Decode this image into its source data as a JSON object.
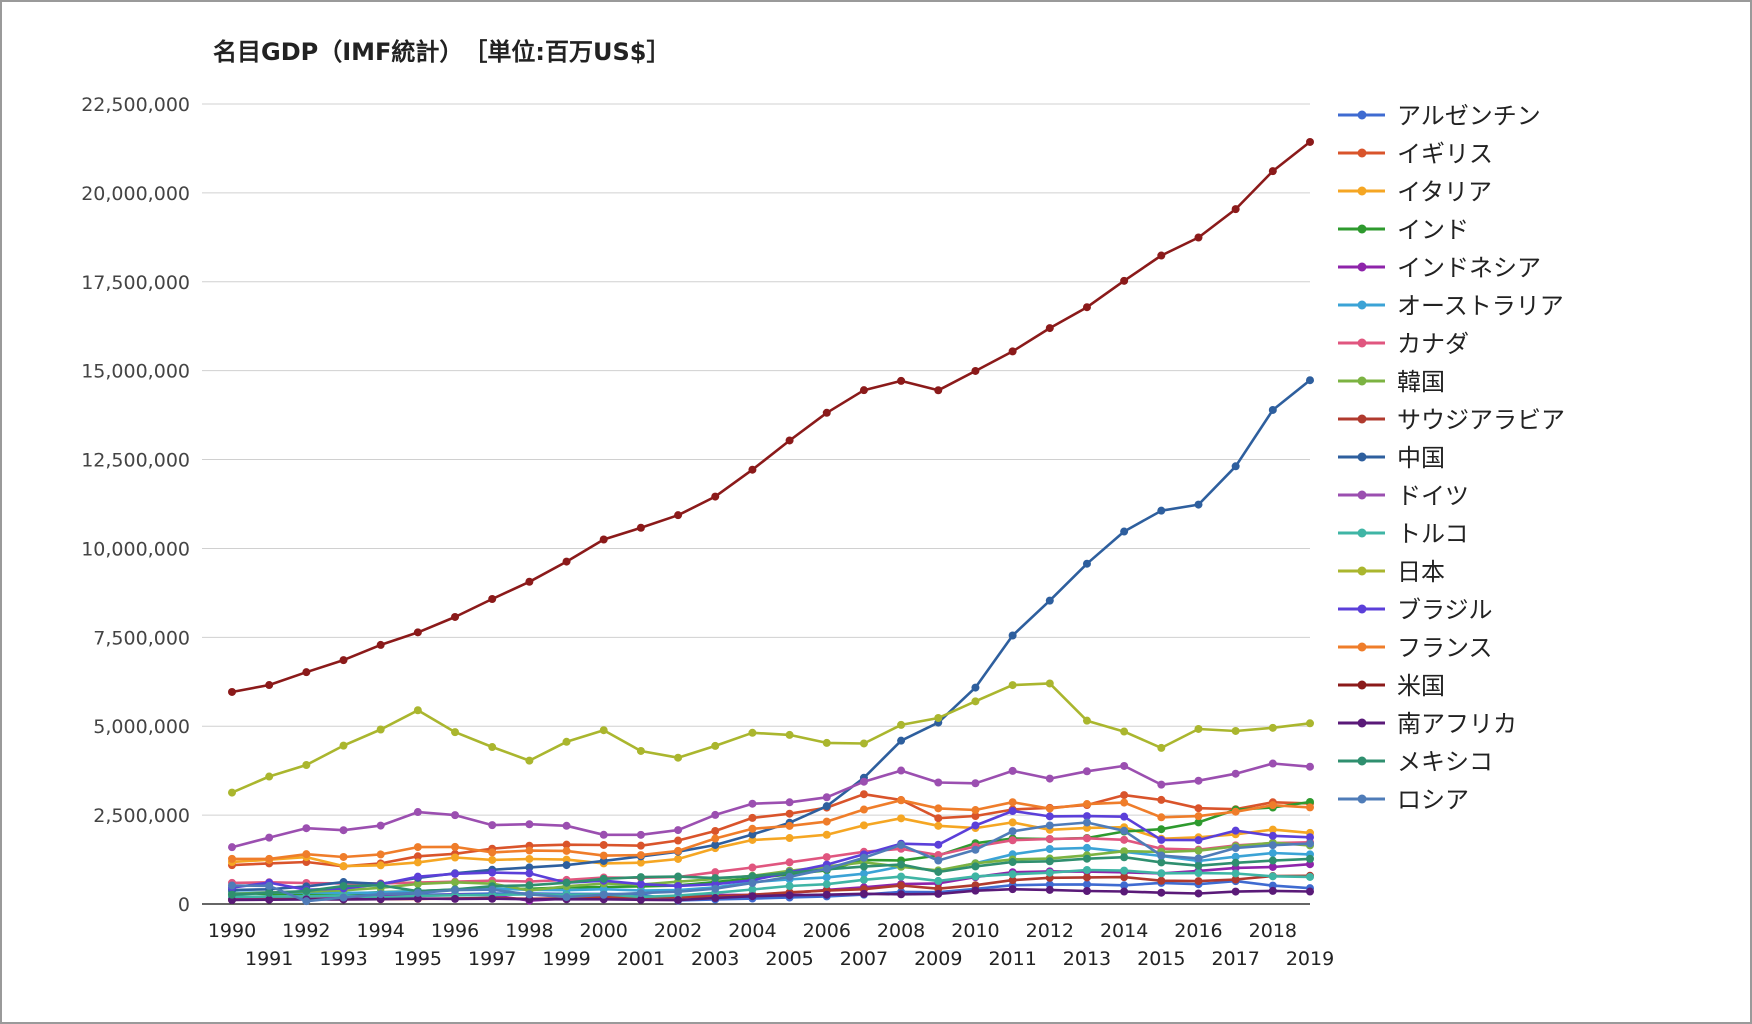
{
  "chart_data": {
    "type": "line",
    "title": "名目GDP（IMF統計）　［単位:百万US$］",
    "ylim": [
      0,
      22500000
    ],
    "yticks": [
      "0",
      "2,500,000",
      "5,000,000",
      "7,500,000",
      "10,000,000",
      "12,500,000",
      "15,000,000",
      "17,500,000",
      "20,000,000",
      "22,500,000"
    ],
    "grid": true,
    "legend_position": "right",
    "x": [
      1990,
      1991,
      1992,
      1993,
      1994,
      1995,
      1996,
      1997,
      1998,
      1999,
      2000,
      2001,
      2002,
      2003,
      2004,
      2005,
      2006,
      2007,
      2008,
      2009,
      2010,
      2011,
      2012,
      2013,
      2014,
      2015,
      2016,
      2017,
      2018,
      2019
    ],
    "series": [
      {
        "name": "アルゼンチン",
        "color": "#3f6bd1",
        "values": [
          141000,
          190000,
          229000,
          237000,
          258000,
          258000,
          272000,
          293000,
          299000,
          284000,
          284000,
          269000,
          98000,
          128000,
          153000,
          183000,
          214000,
          263000,
          339000,
          333000,
          424000,
          530000,
          546000,
          552000,
          526000,
          594000,
          557000,
          643000,
          518000,
          445000
        ]
      },
      {
        "name": "イギリス",
        "color": "#d9542b",
        "values": [
          1093000,
          1142000,
          1180000,
          1061000,
          1141000,
          1342000,
          1412000,
          1555000,
          1640000,
          1669000,
          1660000,
          1641000,
          1785000,
          2053000,
          2422000,
          2540000,
          2711000,
          3088000,
          2924000,
          2413000,
          2475000,
          2659000,
          2705000,
          2784000,
          3063000,
          2928000,
          2694000,
          2666000,
          2861000,
          2829000
        ]
      },
      {
        "name": "イタリア",
        "color": "#f5a623",
        "values": [
          1181000,
          1246000,
          1320000,
          1065000,
          1089000,
          1170000,
          1308000,
          1239000,
          1267000,
          1249000,
          1142000,
          1162000,
          1267000,
          1570000,
          1801000,
          1855000,
          1948000,
          2212000,
          2409000,
          2199000,
          2136000,
          2294000,
          2087000,
          2141000,
          2159000,
          1835000,
          1876000,
          1961000,
          2092000,
          2001000
        ]
      },
      {
        "name": "インド",
        "color": "#2e9a2e",
        "values": [
          326000,
          275000,
          293000,
          284000,
          333000,
          367000,
          400000,
          423000,
          428000,
          467000,
          477000,
          494000,
          524000,
          618000,
          722000,
          834000,
          949000,
          1238000,
          1224000,
          1365000,
          1709000,
          1843000,
          1826000,
          1857000,
          2039000,
          2104000,
          2295000,
          2653000,
          2713000,
          2869000
        ]
      },
      {
        "name": "インドネシア",
        "color": "#8e24aa",
        "values": [
          138000,
          151000,
          164000,
          185000,
          204000,
          231000,
          258000,
          242000,
          96000,
          151000,
          179000,
          174000,
          209000,
          249000,
          260000,
          311000,
          397000,
          470000,
          559000,
          580000,
          756000,
          893000,
          918000,
          912000,
          891000,
          861000,
          932000,
          1015000,
          1042000,
          1119000
        ]
      },
      {
        "name": "オーストラリア",
        "color": "#3ba3d6",
        "values": [
          311000,
          325000,
          325000,
          311000,
          322000,
          367000,
          400000,
          435000,
          399000,
          389000,
          416000,
          379000,
          395000,
          467000,
          612000,
          694000,
          747000,
          853000,
          1054000,
          927000,
          1145000,
          1398000,
          1547000,
          1577000,
          1468000,
          1351000,
          1208000,
          1330000,
          1433000,
          1396000
        ]
      },
      {
        "name": "カナダ",
        "color": "#e0567f",
        "values": [
          594000,
          610000,
          592000,
          578000,
          579000,
          604000,
          628000,
          654000,
          634000,
          678000,
          744000,
          738000,
          760000,
          896000,
          1026000,
          1173000,
          1319000,
          1469000,
          1553000,
          1377000,
          1617000,
          1793000,
          1828000,
          1847000,
          1805000,
          1556000,
          1528000,
          1649000,
          1716000,
          1736000
        ]
      },
      {
        "name": "韓国",
        "color": "#7cb342",
        "values": [
          279000,
          325000,
          350000,
          386000,
          455000,
          566000,
          610000,
          570000,
          382000,
          497000,
          576000,
          547000,
          627000,
          702000,
          793000,
          935000,
          1053000,
          1172000,
          1047000,
          944000,
          1144000,
          1253000,
          1278000,
          1370000,
          1484000,
          1466000,
          1500000,
          1624000,
          1725000,
          1647000
        ]
      },
      {
        "name": "サウジアラビア",
        "color": "#b03a2e",
        "values": [
          117000,
          132000,
          137000,
          133000,
          135000,
          143000,
          158000,
          165000,
          146000,
          161000,
          189000,
          184000,
          189000,
          215000,
          258000,
          328000,
          377000,
          416000,
          520000,
          430000,
          528000,
          671000,
          736000,
          747000,
          756000,
          654000,
          645000,
          689000,
          787000,
          793000
        ]
      },
      {
        "name": "中国",
        "color": "#2e5f9e",
        "values": [
          395000,
          414000,
          494000,
          617000,
          564000,
          734000,
          864000,
          962000,
          1029000,
          1094000,
          1211000,
          1339000,
          1471000,
          1660000,
          1955000,
          2286000,
          2752000,
          3550000,
          4594000,
          5102000,
          6087000,
          7552000,
          8532000,
          9570000,
          10476000,
          11062000,
          11233000,
          12310000,
          13895000,
          14732000
        ]
      },
      {
        "name": "ドイツ",
        "color": "#9b4fb0",
        "values": [
          1598000,
          1867000,
          2131000,
          2075000,
          2206000,
          2586000,
          2500000,
          2218000,
          2243000,
          2200000,
          1947000,
          1945000,
          2079000,
          2505000,
          2820000,
          2861000,
          3002000,
          3440000,
          3753000,
          3417000,
          3396000,
          3744000,
          3527000,
          3733000,
          3883000,
          3357000,
          3467000,
          3665000,
          3951000,
          3861000
        ]
      },
      {
        "name": "トルコ",
        "color": "#3fb5a5",
        "values": [
          206000,
          207000,
          215000,
          243000,
          179000,
          230000,
          245000,
          256000,
          274000,
          258000,
          274000,
          201000,
          240000,
          314000,
          408000,
          506000,
          557000,
          681000,
          770000,
          649000,
          777000,
          838000,
          880000,
          957000,
          939000,
          864000,
          869000,
          859000,
          778000,
          761000
        ]
      },
      {
        "name": "日本",
        "color": "#aab62e",
        "values": [
          3133000,
          3585000,
          3909000,
          4454000,
          4908000,
          5449000,
          4834000,
          4415000,
          4032000,
          4562000,
          4888000,
          4304000,
          4115000,
          4446000,
          4815000,
          4755000,
          4530000,
          4515000,
          5038000,
          5231000,
          5700000,
          6157000,
          6203000,
          5156000,
          4850000,
          4390000,
          4923000,
          4867000,
          4955000,
          5082000
        ]
      },
      {
        "name": "ブラジル",
        "color": "#5b3fd9",
        "values": [
          462000,
          602000,
          400000,
          438000,
          558000,
          769000,
          850000,
          883000,
          864000,
          599000,
          655000,
          559000,
          508000,
          558000,
          669000,
          892000,
          1107000,
          1397000,
          1696000,
          1667000,
          2209000,
          2616000,
          2465000,
          2473000,
          2456000,
          1802000,
          1796000,
          2063000,
          1917000,
          1877000
        ]
      },
      {
        "name": "フランス",
        "color": "#ef7d2a",
        "values": [
          1269000,
          1269000,
          1401000,
          1323000,
          1394000,
          1601000,
          1605000,
          1452000,
          1503000,
          1493000,
          1362000,
          1376000,
          1494000,
          1841000,
          2115000,
          2196000,
          2318000,
          2657000,
          2918000,
          2690000,
          2643000,
          2862000,
          2683000,
          2811000,
          2852000,
          2439000,
          2471000,
          2595000,
          2780000,
          2716000
        ]
      },
      {
        "name": "米国",
        "color": "#8b1a1a",
        "values": [
          5963000,
          6158000,
          6520000,
          6859000,
          7287000,
          7640000,
          8073000,
          8578000,
          9063000,
          9631000,
          10252000,
          10582000,
          10936000,
          11458000,
          12214000,
          13037000,
          13815000,
          14452000,
          14713000,
          14449000,
          14992000,
          15543000,
          16197000,
          16785000,
          17527000,
          18238000,
          18745000,
          19543000,
          20612000,
          21433000
        ]
      },
      {
        "name": "南アフリカ",
        "color": "#5a1a78",
        "values": [
          112000,
          120000,
          130000,
          130000,
          136000,
          151000,
          143000,
          148000,
          134000,
          133000,
          132000,
          118000,
          111000,
          168000,
          219000,
          247000,
          261000,
          286000,
          273000,
          284000,
          375000,
          417000,
          396000,
          366000,
          351000,
          318000,
          296000,
          349000,
          368000,
          351000
        ]
      },
      {
        "name": "メキシコ",
        "color": "#2f8f6f",
        "values": [
          262000,
          314000,
          363000,
          503000,
          527000,
          360000,
          411000,
          500000,
          526000,
          600000,
          708000,
          756000,
          772000,
          729000,
          782000,
          877000,
          975000,
          1053000,
          1110000,
          901000,
          1058000,
          1180000,
          1201000,
          1274000,
          1315000,
          1171000,
          1078000,
          1159000,
          1222000,
          1269000
        ]
      },
      {
        "name": "ロシア",
        "color": "#4f7cb8",
        "values": [
          520000,
          509000,
          80000,
          183000,
          277000,
          313000,
          391000,
          405000,
          271000,
          196000,
          260000,
          307000,
          345000,
          430000,
          591000,
          764000,
          990000,
          1300000,
          1661000,
          1223000,
          1525000,
          2046000,
          2209000,
          2292000,
          2059000,
          1364000,
          1283000,
          1575000,
          1653000,
          1700000
        ]
      }
    ]
  }
}
